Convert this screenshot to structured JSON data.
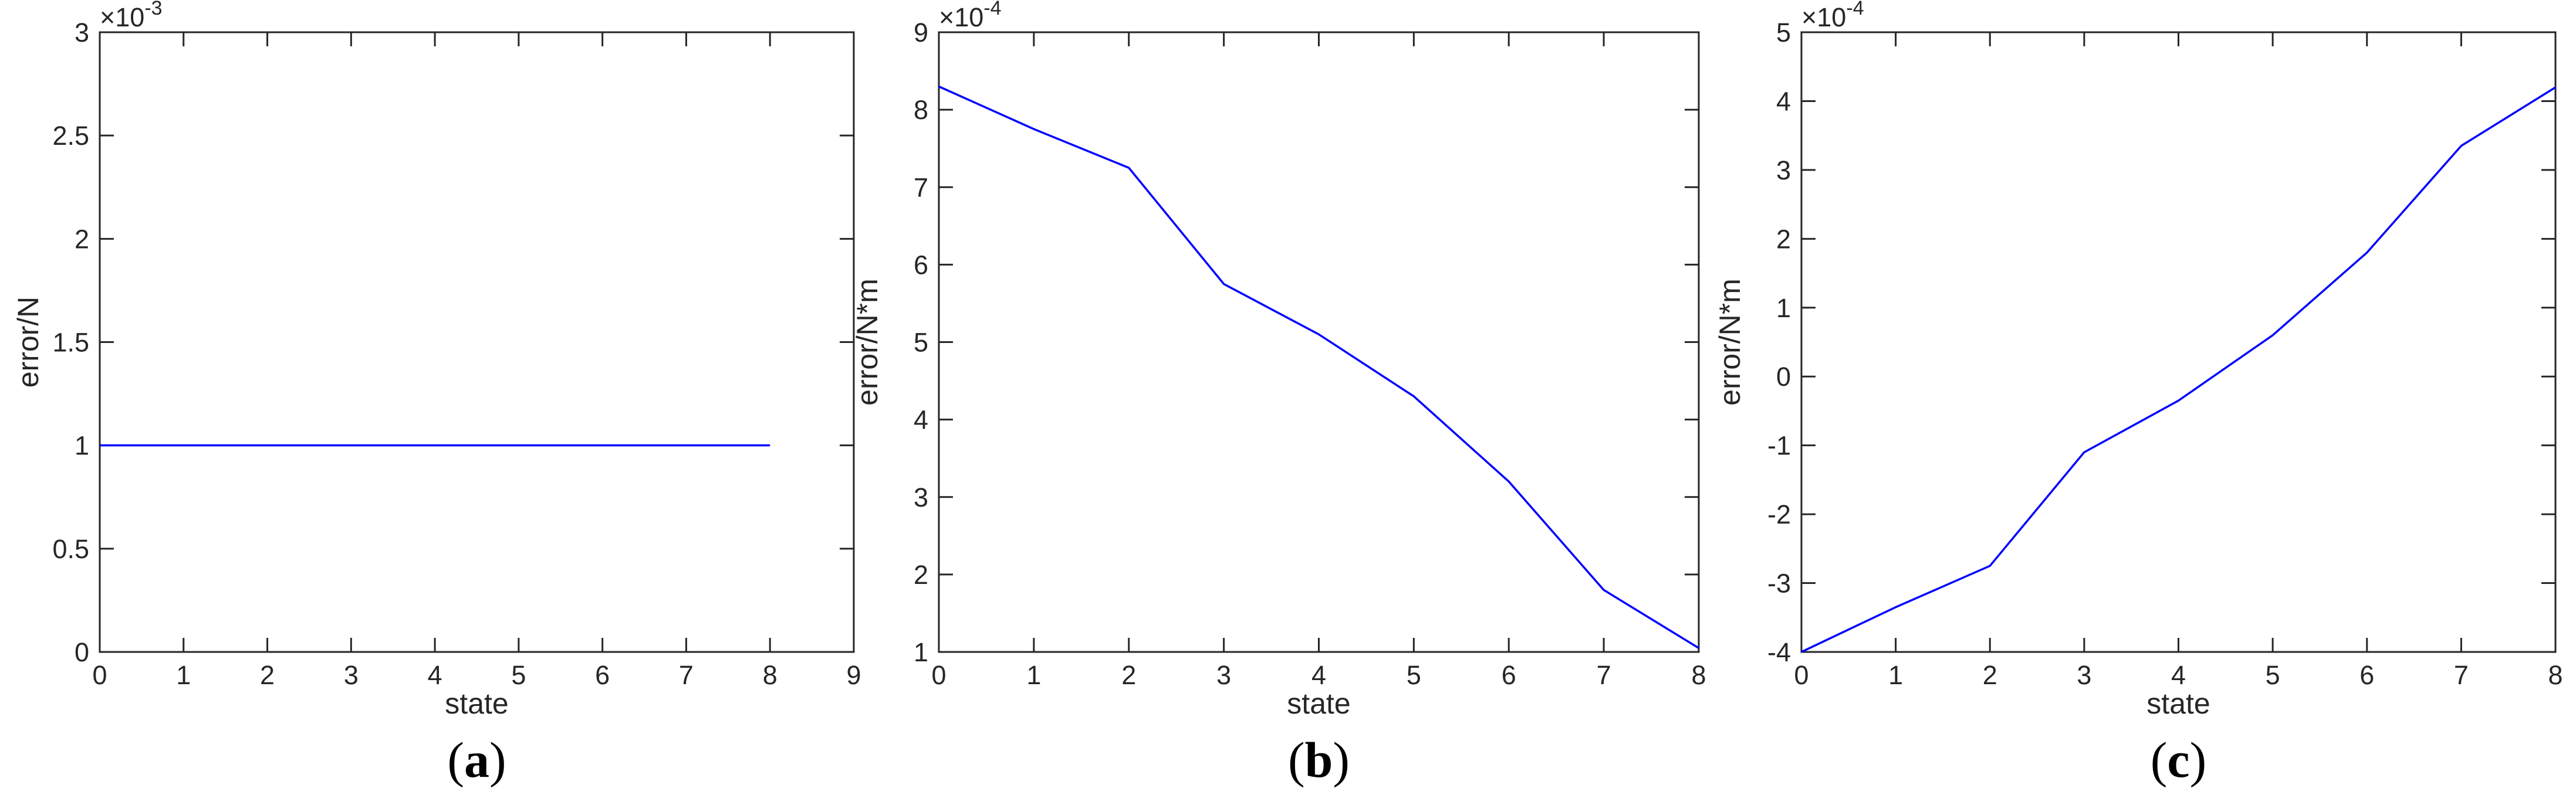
{
  "colors": {
    "series": "#0000ff",
    "axes": "#262626"
  },
  "chart_data": [
    {
      "type": "line",
      "panel_label": "a",
      "xlabel": "state",
      "ylabel": "error/N",
      "xlim": [
        0,
        9
      ],
      "ylim": [
        0,
        3
      ],
      "exponent_label": "×10",
      "exponent_power": "-3",
      "xticks": [
        "0",
        "1",
        "2",
        "3",
        "4",
        "5",
        "6",
        "7",
        "8",
        "9"
      ],
      "yticks": [
        "0",
        "0.5",
        "1",
        "1.5",
        "2",
        "2.5",
        "3"
      ],
      "grid": false,
      "series": [
        {
          "x": [
            0,
            1,
            2,
            3,
            4,
            5,
            6,
            7,
            8
          ],
          "y": [
            1,
            1,
            1,
            1,
            1,
            1,
            1,
            1,
            1
          ]
        }
      ]
    },
    {
      "type": "line",
      "panel_label": "b",
      "xlabel": "state",
      "ylabel": "error/N*m",
      "xlim": [
        0,
        8
      ],
      "ylim": [
        1,
        9
      ],
      "exponent_label": "×10",
      "exponent_power": "-4",
      "xticks": [
        "0",
        "1",
        "2",
        "3",
        "4",
        "5",
        "6",
        "7",
        "8"
      ],
      "yticks": [
        "1",
        "2",
        "3",
        "4",
        "5",
        "6",
        "7",
        "8",
        "9"
      ],
      "grid": false,
      "series": [
        {
          "x": [
            0,
            1,
            2,
            3,
            4,
            5,
            6,
            7,
            8
          ],
          "y": [
            8.3,
            7.75,
            7.25,
            5.75,
            5.1,
            4.3,
            3.2,
            1.8,
            1.05
          ]
        }
      ]
    },
    {
      "type": "line",
      "panel_label": "c",
      "xlabel": "state",
      "ylabel": "error/N*m",
      "xlim": [
        0,
        8
      ],
      "ylim": [
        -4,
        5
      ],
      "exponent_label": "×10",
      "exponent_power": "-4",
      "xticks": [
        "0",
        "1",
        "2",
        "3",
        "4",
        "5",
        "6",
        "7",
        "8"
      ],
      "yticks": [
        "-4",
        "-3",
        "-2",
        "-1",
        "0",
        "1",
        "2",
        "3",
        "4",
        "5"
      ],
      "grid": false,
      "series": [
        {
          "x": [
            0,
            1,
            2,
            3,
            4,
            5,
            6,
            7,
            8
          ],
          "y": [
            -4.0,
            -3.35,
            -2.75,
            -1.1,
            -0.35,
            0.6,
            1.8,
            3.35,
            4.2
          ]
        }
      ]
    }
  ]
}
